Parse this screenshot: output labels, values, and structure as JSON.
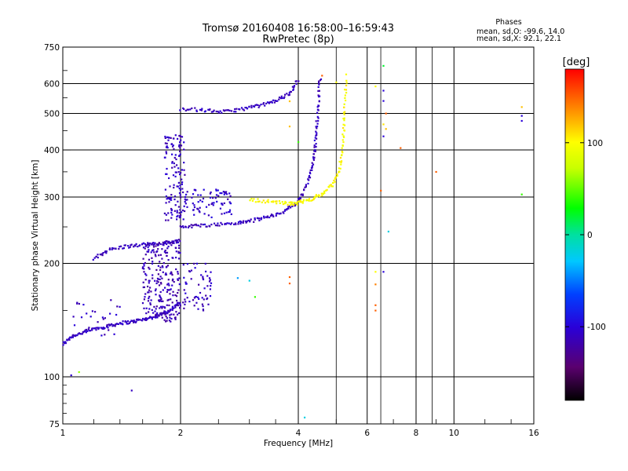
{
  "chart_data": {
    "type": "scatter",
    "title": "Tromsø 20160408 16:58:00–16:59:43",
    "subtitle": "RwPretec (8p)",
    "xlabel": "Frequency [MHz]",
    "ylabel": "Stationary phase Virtual Height [km]",
    "x_scale": "log2",
    "y_scale": "log",
    "xlim": [
      1,
      16
    ],
    "ylim": [
      75,
      750
    ],
    "x_ticks": [
      1,
      2,
      4,
      6,
      8,
      10,
      16
    ],
    "x_tick_labels": [
      "1",
      "2",
      "4",
      "6",
      "8",
      "10",
      "16"
    ],
    "x_grid": [
      1,
      2,
      4,
      6,
      8,
      10,
      16
    ],
    "x_minor_grid": [
      5,
      6.5,
      8.8
    ],
    "y_ticks": [
      75,
      100,
      200,
      300,
      400,
      500,
      600,
      750
    ],
    "y_tick_labels": [
      "75",
      "100",
      "200",
      "300",
      "400",
      "500",
      "600",
      "750"
    ],
    "grid": true,
    "info": {
      "heading": "Phases",
      "line1": "mean, sd,O: -99.6, 14.0",
      "line2": "mean, sd,X:  92.1, 22.1"
    },
    "colorbar": {
      "label": "[deg]",
      "range": [
        -180,
        180
      ],
      "ticks": [
        100,
        0,
        -100
      ],
      "tick_labels": [
        "100",
        "0",
        "-100"
      ],
      "placement": "right"
    },
    "traces": [
      {
        "x": [
          1.0,
          1.05,
          1.12,
          1.2,
          1.3,
          1.4,
          1.5,
          1.6,
          1.7,
          1.8,
          1.9,
          2.0
        ],
        "y": [
          122,
          128,
          131,
          134,
          136,
          139,
          140,
          142,
          144,
          147,
          151,
          158
        ],
        "phase": -110
      },
      {
        "x": [
          1.2,
          1.3,
          1.45,
          1.6,
          1.75,
          1.9,
          2.0
        ],
        "y": [
          205,
          217,
          222,
          224,
          226,
          228,
          230
        ],
        "phase": -110
      },
      {
        "x": [
          2.0,
          2.2,
          2.5,
          2.8,
          3.0,
          3.3,
          3.6,
          3.9,
          4.1,
          4.3,
          4.4,
          4.45,
          4.5,
          4.55
        ],
        "y": [
          250,
          252,
          254,
          256,
          259,
          265,
          272,
          285,
          305,
          345,
          390,
          450,
          530,
          630
        ],
        "phase": -110
      },
      {
        "x": [
          2.0,
          2.3,
          2.6,
          2.9,
          3.2,
          3.5,
          3.8,
          4.0
        ],
        "y": [
          515,
          510,
          505,
          515,
          525,
          540,
          565,
          615
        ],
        "phase": -110
      },
      {
        "x": [
          3.0,
          3.4,
          3.8,
          4.0,
          4.3,
          4.6,
          4.9,
          5.1,
          5.2,
          5.25,
          5.3
        ],
        "y": [
          295,
          292,
          288,
          290,
          296,
          305,
          325,
          355,
          420,
          500,
          620
        ],
        "phase": 100
      }
    ],
    "clouds": [
      {
        "x_range": [
          1.82,
          2.05
        ],
        "y_range": [
          260,
          440
        ],
        "phase": -110,
        "count": 130
      },
      {
        "x_range": [
          2.0,
          2.7
        ],
        "y_range": [
          265,
          315
        ],
        "phase": -105,
        "count": 80
      },
      {
        "x_range": [
          1.6,
          2.0
        ],
        "y_range": [
          140,
          230
        ],
        "phase": -115,
        "count": 240
      },
      {
        "x_range": [
          2.0,
          2.4
        ],
        "y_range": [
          150,
          200
        ],
        "phase": -110,
        "count": 60
      },
      {
        "x_range": [
          1.05,
          1.4
        ],
        "y_range": [
          128,
          160
        ],
        "phase": -110,
        "count": 30
      }
    ],
    "scatter_points": [
      {
        "x": 1.5,
        "y": 92,
        "phase": -110
      },
      {
        "x": 1.05,
        "y": 101,
        "phase": -105
      },
      {
        "x": 1.1,
        "y": 103,
        "phase": 60
      },
      {
        "x": 2.8,
        "y": 183,
        "phase": -40
      },
      {
        "x": 3.0,
        "y": 180,
        "phase": -20
      },
      {
        "x": 3.1,
        "y": 163,
        "phase": 40
      },
      {
        "x": 3.8,
        "y": 184,
        "phase": 150
      },
      {
        "x": 3.8,
        "y": 177,
        "phase": 150
      },
      {
        "x": 3.8,
        "y": 462,
        "phase": 120
      },
      {
        "x": 3.8,
        "y": 539,
        "phase": 120
      },
      {
        "x": 4.0,
        "y": 420,
        "phase": 40
      },
      {
        "x": 4.15,
        "y": 78,
        "phase": -20
      },
      {
        "x": 6.3,
        "y": 590,
        "phase": 100
      },
      {
        "x": 6.3,
        "y": 190,
        "phase": 100
      },
      {
        "x": 6.3,
        "y": 176,
        "phase": 140
      },
      {
        "x": 6.3,
        "y": 155,
        "phase": 150
      },
      {
        "x": 6.3,
        "y": 150,
        "phase": 150
      },
      {
        "x": 6.5,
        "y": 312,
        "phase": 150
      },
      {
        "x": 6.6,
        "y": 669,
        "phase": 20
      },
      {
        "x": 6.6,
        "y": 575,
        "phase": -100
      },
      {
        "x": 6.6,
        "y": 540,
        "phase": -100
      },
      {
        "x": 6.6,
        "y": 468,
        "phase": 110
      },
      {
        "x": 6.6,
        "y": 435,
        "phase": -100
      },
      {
        "x": 6.6,
        "y": 190,
        "phase": -100
      },
      {
        "x": 6.7,
        "y": 500,
        "phase": 150
      },
      {
        "x": 6.7,
        "y": 455,
        "phase": 120
      },
      {
        "x": 6.8,
        "y": 243,
        "phase": -20
      },
      {
        "x": 7.3,
        "y": 405,
        "phase": 150
      },
      {
        "x": 9.0,
        "y": 350,
        "phase": 150
      },
      {
        "x": 14.9,
        "y": 520,
        "phase": 120
      },
      {
        "x": 14.9,
        "y": 493,
        "phase": -100
      },
      {
        "x": 14.9,
        "y": 478,
        "phase": -100
      },
      {
        "x": 14.9,
        "y": 305,
        "phase": 40
      },
      {
        "x": 5.3,
        "y": 635,
        "phase": 100
      },
      {
        "x": 5.0,
        "y": 605,
        "phase": 100
      },
      {
        "x": 4.6,
        "y": 630,
        "phase": 150
      }
    ]
  }
}
